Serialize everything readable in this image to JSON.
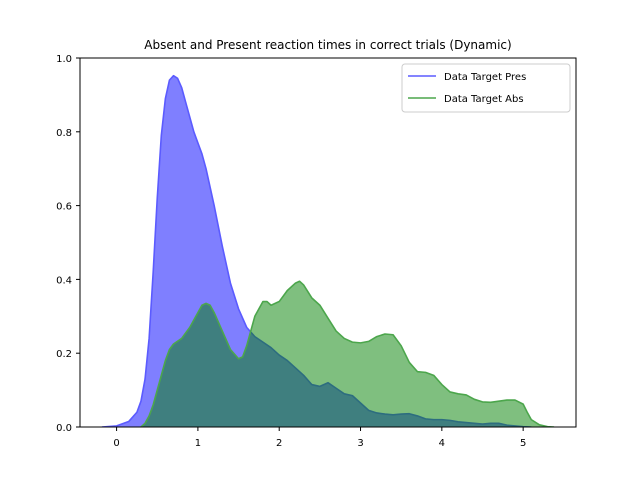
{
  "chart_data": {
    "type": "area",
    "title": "Absent and Present reaction times in correct trials (Dynamic)",
    "xlabel": "",
    "ylabel": "",
    "xlim": [
      -0.45,
      5.65
    ],
    "ylim": [
      0,
      1.0
    ],
    "xticks": [
      0,
      1,
      2,
      3,
      4,
      5
    ],
    "yticks": [
      0.0,
      0.2,
      0.4,
      0.6,
      0.8,
      1.0
    ],
    "grid": false,
    "legend_position": "top-right",
    "series": [
      {
        "name": "Data Target Pres",
        "line_color": "#5b5bff",
        "fill_color": "#7f7fff",
        "fill_opacity": 1.0,
        "x": [
          -0.18,
          0.0,
          0.15,
          0.25,
          0.3,
          0.35,
          0.4,
          0.45,
          0.5,
          0.55,
          0.6,
          0.65,
          0.7,
          0.75,
          0.8,
          0.85,
          0.9,
          0.95,
          1.0,
          1.05,
          1.1,
          1.2,
          1.3,
          1.4,
          1.5,
          1.6,
          1.7,
          1.8,
          1.9,
          2.0,
          2.1,
          2.2,
          2.3,
          2.4,
          2.5,
          2.6,
          2.7,
          2.8,
          2.9,
          3.0,
          3.1,
          3.2,
          3.3,
          3.4,
          3.5,
          3.6,
          3.7,
          3.8,
          3.9,
          4.0,
          4.1,
          4.2,
          4.3,
          4.4,
          4.5,
          4.6,
          4.7,
          4.8,
          4.9,
          5.0,
          5.1
        ],
        "y": [
          0.0,
          0.003,
          0.015,
          0.04,
          0.07,
          0.13,
          0.24,
          0.42,
          0.62,
          0.79,
          0.89,
          0.94,
          0.952,
          0.945,
          0.92,
          0.88,
          0.84,
          0.8,
          0.77,
          0.74,
          0.7,
          0.6,
          0.49,
          0.39,
          0.32,
          0.27,
          0.245,
          0.23,
          0.215,
          0.195,
          0.18,
          0.16,
          0.14,
          0.115,
          0.11,
          0.12,
          0.105,
          0.09,
          0.085,
          0.065,
          0.045,
          0.038,
          0.035,
          0.033,
          0.035,
          0.036,
          0.03,
          0.022,
          0.02,
          0.02,
          0.018,
          0.014,
          0.012,
          0.01,
          0.008,
          0.01,
          0.01,
          0.005,
          0.003,
          0.001,
          0.0
        ]
      },
      {
        "name": "Data Target Abs",
        "line_color": "#4ca64c",
        "fill_color": "#008000",
        "fill_opacity": 0.5,
        "x": [
          0.3,
          0.35,
          0.4,
          0.45,
          0.5,
          0.55,
          0.6,
          0.65,
          0.7,
          0.8,
          0.9,
          1.0,
          1.05,
          1.1,
          1.15,
          1.2,
          1.3,
          1.4,
          1.5,
          1.55,
          1.6,
          1.7,
          1.8,
          1.85,
          1.9,
          2.0,
          2.1,
          2.2,
          2.25,
          2.3,
          2.4,
          2.5,
          2.6,
          2.7,
          2.8,
          2.9,
          3.0,
          3.1,
          3.2,
          3.3,
          3.4,
          3.5,
          3.6,
          3.7,
          3.8,
          3.9,
          4.0,
          4.1,
          4.2,
          4.3,
          4.4,
          4.5,
          4.6,
          4.7,
          4.8,
          4.9,
          5.0,
          5.05,
          5.1,
          5.2,
          5.3,
          5.38
        ],
        "y": [
          0.0,
          0.01,
          0.03,
          0.06,
          0.1,
          0.14,
          0.18,
          0.21,
          0.225,
          0.24,
          0.27,
          0.31,
          0.33,
          0.335,
          0.33,
          0.31,
          0.26,
          0.21,
          0.185,
          0.19,
          0.22,
          0.3,
          0.34,
          0.34,
          0.33,
          0.34,
          0.37,
          0.39,
          0.395,
          0.385,
          0.35,
          0.33,
          0.295,
          0.26,
          0.24,
          0.23,
          0.228,
          0.232,
          0.245,
          0.252,
          0.25,
          0.22,
          0.175,
          0.15,
          0.148,
          0.14,
          0.115,
          0.095,
          0.09,
          0.087,
          0.075,
          0.068,
          0.067,
          0.07,
          0.073,
          0.073,
          0.062,
          0.04,
          0.02,
          0.006,
          0.001,
          0.0
        ]
      }
    ]
  }
}
